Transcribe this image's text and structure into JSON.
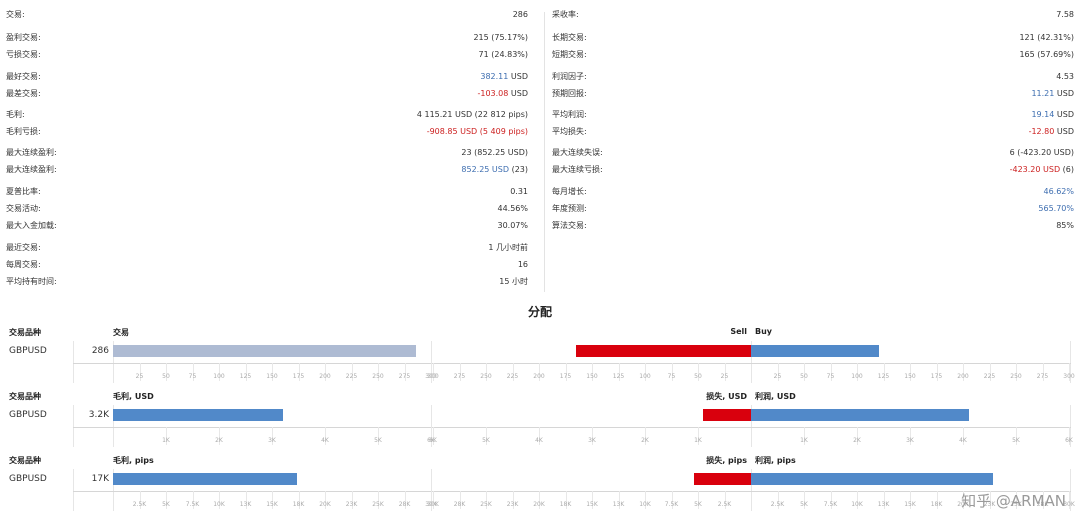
{
  "stats": {
    "left": [
      {
        "label": "交易:",
        "value": "286",
        "value_color": "",
        "value_suffix": ""
      },
      {
        "label": "盈利交易:",
        "value": "215 (75.17%)",
        "value_color": "",
        "value_suffix": ""
      },
      {
        "label": "亏损交易:",
        "value": "71 (24.83%)",
        "value_color": "",
        "value_suffix": ""
      },
      {
        "label": "最好交易:",
        "value": "382.11",
        "value_color": "blue",
        "value_suffix": " USD"
      },
      {
        "label": "最差交易:",
        "value": "-103.08",
        "value_color": "red",
        "value_suffix": " USD"
      },
      {
        "label": "毛利:",
        "value": "4 115.21 USD (22 812 pips)",
        "value_color": "",
        "value_suffix": ""
      },
      {
        "label": "毛利亏损:",
        "value": "-908.85 USD (5 409 pips)",
        "value_color": "red",
        "value_suffix": ""
      },
      {
        "label": "最大连续盈利:",
        "value": "23 (852.25 USD)",
        "value_color": "",
        "value_suffix": ""
      },
      {
        "label": "最大连续盈利:",
        "value": "852.25 USD",
        "value_color": "blue",
        "value_suffix": " (23)"
      },
      {
        "label": "夏普比率:",
        "value": "0.31",
        "value_color": "",
        "value_suffix": ""
      },
      {
        "label": "交易活动:",
        "value": "44.56%",
        "value_color": "",
        "value_suffix": ""
      },
      {
        "label": "最大入金加载:",
        "value": "30.07%",
        "value_color": "",
        "value_suffix": ""
      },
      {
        "label": "最近交易:",
        "value": "1 几小时前",
        "value_color": "",
        "value_suffix": ""
      },
      {
        "label": "每周交易:",
        "value": "16",
        "value_color": "",
        "value_suffix": ""
      },
      {
        "label": "平均持有时间:",
        "value": "15 小时",
        "value_color": "",
        "value_suffix": ""
      }
    ],
    "right": [
      {
        "label": "采收率:",
        "value": "7.58",
        "value_color": "",
        "value_suffix": ""
      },
      {
        "label": "长期交易:",
        "value": "121 (42.31%)",
        "value_color": "",
        "value_suffix": ""
      },
      {
        "label": "短期交易:",
        "value": "165 (57.69%)",
        "value_color": "",
        "value_suffix": ""
      },
      {
        "label": "利润因子:",
        "value": "4.53",
        "value_color": "",
        "value_suffix": ""
      },
      {
        "label": "预期回报:",
        "value": "11.21",
        "value_color": "blue",
        "value_suffix": " USD"
      },
      {
        "label": "平均利润:",
        "value": "19.14",
        "value_color": "blue",
        "value_suffix": " USD"
      },
      {
        "label": "平均损失:",
        "value": "-12.80",
        "value_color": "red",
        "value_suffix": " USD"
      },
      {
        "label": "最大连续失误:",
        "value": "6 (-423.20 USD)",
        "value_color": "",
        "value_suffix": ""
      },
      {
        "label": "最大连续亏损:",
        "value": "-423.20 USD",
        "value_color": "red",
        "value_suffix": " (6)"
      },
      {
        "label": "每月增长:",
        "value": "46.62%",
        "value_color": "blue",
        "value_suffix": ""
      },
      {
        "label": "年度预测:",
        "value": "565.70%",
        "value_color": "blue",
        "value_suffix": ""
      },
      {
        "label": "算法交易:",
        "value": "85%",
        "value_color": "",
        "value_suffix": ""
      }
    ]
  },
  "section_title": "分配",
  "colors": {
    "blue": "#5189c9",
    "red": "#d9000d",
    "gray": "#aebbd3"
  },
  "chart_data": [
    {
      "type": "bar",
      "symbol_header": "交易品种",
      "symbol": "GBPUSD",
      "total": "286",
      "left_title": "交易",
      "right_left_title": "Sell",
      "right_right_title": "Buy",
      "left": {
        "value": 286,
        "max": 300,
        "ticks": [
          "25",
          "50",
          "75",
          "100",
          "125",
          "150",
          "175",
          "200",
          "225",
          "250",
          "275",
          "300"
        ]
      },
      "right": {
        "sell": 165,
        "buy": 121,
        "max": 300,
        "sell_ticks": [
          "300",
          "275",
          "250",
          "225",
          "200",
          "175",
          "150",
          "125",
          "100",
          "75",
          "50",
          "25"
        ],
        "buy_ticks": [
          "25",
          "50",
          "75",
          "100",
          "125",
          "150",
          "175",
          "200",
          "225",
          "250",
          "275",
          "300"
        ]
      }
    },
    {
      "type": "bar",
      "symbol_header": "交易品种",
      "symbol": "GBPUSD",
      "total": "3.2K",
      "left_title": "毛利, USD",
      "right_left_title": "损失, USD",
      "right_right_title": "利润, USD",
      "left": {
        "value": 3206,
        "max": 6000,
        "ticks": [
          "1K",
          "2K",
          "3K",
          "4K",
          "5K",
          "6K"
        ]
      },
      "right": {
        "sell": 909,
        "buy": 4115,
        "max": 6000,
        "sell_ticks": [
          "6K",
          "5K",
          "4K",
          "3K",
          "2K",
          "1K"
        ],
        "buy_ticks": [
          "1K",
          "2K",
          "3K",
          "4K",
          "5K",
          "6K"
        ]
      }
    },
    {
      "type": "bar",
      "symbol_header": "交易品种",
      "symbol": "GBPUSD",
      "total": "17K",
      "left_title": "毛利, pips",
      "right_left_title": "损失, pips",
      "right_right_title": "利润, pips",
      "left": {
        "value": 17403,
        "max": 30000,
        "ticks": [
          "2.5K",
          "5K",
          "7.5K",
          "10K",
          "13K",
          "15K",
          "18K",
          "20K",
          "23K",
          "25K",
          "28K",
          "30K"
        ]
      },
      "right": {
        "sell": 5409,
        "buy": 22812,
        "max": 30000,
        "sell_ticks": [
          "30K",
          "28K",
          "25K",
          "23K",
          "20K",
          "18K",
          "15K",
          "13K",
          "10K",
          "7.5K",
          "5K",
          "2.5K"
        ],
        "buy_ticks": [
          "2.5K",
          "5K",
          "7.5K",
          "10K",
          "13K",
          "15K",
          "18K",
          "20K",
          "23K",
          "25K",
          "28K",
          "30K"
        ]
      }
    }
  ],
  "watermark": "知乎 @ARMAN"
}
